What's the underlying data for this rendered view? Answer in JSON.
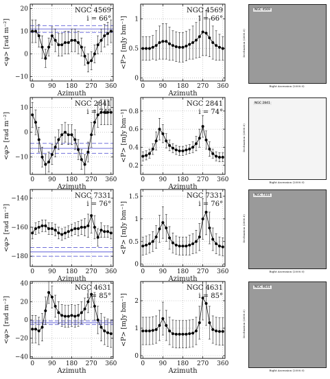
{
  "chart_data": [
    {
      "type": "scatter",
      "row": 0,
      "kind": "rm",
      "galaxy": "NGC 4569",
      "incl": "i = 66°",
      "xlabel": "Azimuth",
      "ylabel": "<φ> [rad m⁻²]",
      "xlim": [
        -10,
        370
      ],
      "ylim": [
        -12,
        22
      ],
      "xticks": [
        0,
        90,
        180,
        270,
        360
      ],
      "yticks": [
        -10,
        0,
        10,
        20
      ],
      "hlines": [
        {
          "y": 11,
          "style": "solid"
        },
        {
          "y": 12.5,
          "style": "dashed"
        },
        {
          "y": 9.5,
          "style": "dashed"
        }
      ],
      "x": [
        0,
        15,
        30,
        45,
        60,
        75,
        90,
        105,
        120,
        135,
        150,
        165,
        180,
        195,
        210,
        225,
        240,
        255,
        270,
        285,
        300,
        315,
        330,
        345,
        360
      ],
      "values": [
        10,
        10,
        8,
        3,
        -2,
        3,
        8,
        6,
        4,
        4,
        5,
        5,
        6,
        6,
        5,
        3,
        -1,
        -4,
        -3,
        0,
        4,
        6,
        8,
        9,
        10
      ],
      "errors": [
        5,
        5,
        5,
        5,
        4,
        4,
        4,
        5,
        5,
        5,
        5,
        5,
        5,
        5,
        5,
        4,
        4,
        4,
        4,
        4,
        4,
        5,
        5,
        5,
        5
      ]
    },
    {
      "type": "scatter",
      "row": 0,
      "kind": "p",
      "galaxy": "NGC 4569",
      "incl": "i = 66°",
      "xlabel": "Azimuth",
      "ylabel": "<P> [mJy bm⁻¹]",
      "xlim": [
        -10,
        370
      ],
      "ylim": [
        -0.05,
        1.25
      ],
      "xticks": [
        0,
        90,
        180,
        270,
        360
      ],
      "yticks": [
        0,
        0.5,
        1
      ],
      "x": [
        0,
        15,
        30,
        45,
        60,
        75,
        90,
        105,
        120,
        135,
        150,
        165,
        180,
        195,
        210,
        225,
        240,
        255,
        270,
        285,
        300,
        315,
        330,
        345,
        360
      ],
      "values": [
        0.5,
        0.5,
        0.5,
        0.52,
        0.55,
        0.6,
        0.62,
        0.62,
        0.58,
        0.55,
        0.53,
        0.52,
        0.52,
        0.54,
        0.57,
        0.6,
        0.64,
        0.7,
        0.78,
        0.76,
        0.68,
        0.6,
        0.55,
        0.52,
        0.5
      ],
      "errors": [
        0.2,
        0.2,
        0.2,
        0.2,
        0.25,
        0.28,
        0.3,
        0.3,
        0.28,
        0.25,
        0.25,
        0.25,
        0.25,
        0.25,
        0.25,
        0.28,
        0.3,
        0.35,
        0.4,
        0.38,
        0.32,
        0.28,
        0.25,
        0.22,
        0.2
      ]
    },
    {
      "type": "scatter",
      "row": 1,
      "kind": "rm",
      "galaxy": "NGC 2841",
      "incl": "i = 74°",
      "xlabel": "Azimuth",
      "ylabel": "<φ> [rad m⁻²]",
      "xlim": [
        -10,
        370
      ],
      "ylim": [
        -17,
        14
      ],
      "xticks": [
        0,
        90,
        180,
        270,
        360
      ],
      "yticks": [
        -10,
        0,
        10
      ],
      "hlines": [
        {
          "y": -6.5,
          "style": "solid"
        },
        {
          "y": -4.5,
          "style": "dashed"
        },
        {
          "y": -8.5,
          "style": "dashed"
        }
      ],
      "x": [
        0,
        15,
        30,
        45,
        60,
        75,
        90,
        105,
        120,
        135,
        150,
        165,
        180,
        195,
        210,
        225,
        240,
        255,
        270,
        285,
        300,
        315,
        330,
        345,
        360
      ],
      "values": [
        7,
        4,
        -3,
        -10,
        -13,
        -12,
        -9,
        -6,
        -3,
        -1,
        0,
        -1,
        -1,
        -3,
        -7,
        -11,
        -13,
        -8,
        -1,
        4,
        7,
        8,
        8,
        8,
        8
      ],
      "errors": [
        5,
        5,
        5,
        4,
        4,
        4,
        4,
        4,
        4,
        4,
        4,
        4,
        4,
        4,
        4,
        4,
        4,
        4,
        5,
        5,
        5,
        5,
        5,
        5,
        5
      ]
    },
    {
      "type": "scatter",
      "row": 1,
      "kind": "p",
      "galaxy": "NGC 2841",
      "incl": "i = 74°",
      "xlabel": "Azimuth",
      "ylabel": "<P> [mJy bm⁻¹]",
      "xlim": [
        -10,
        370
      ],
      "ylim": [
        0.1,
        0.95
      ],
      "xticks": [
        0,
        90,
        180,
        270,
        360
      ],
      "yticks": [
        0.2,
        0.4,
        0.6,
        0.8
      ],
      "x": [
        0,
        15,
        30,
        45,
        60,
        75,
        90,
        105,
        120,
        135,
        150,
        165,
        180,
        195,
        210,
        225,
        240,
        255,
        270,
        285,
        300,
        315,
        330,
        345,
        360
      ],
      "values": [
        0.3,
        0.31,
        0.33,
        0.38,
        0.47,
        0.6,
        0.55,
        0.47,
        0.42,
        0.39,
        0.37,
        0.36,
        0.36,
        0.37,
        0.38,
        0.4,
        0.44,
        0.5,
        0.63,
        0.48,
        0.38,
        0.33,
        0.3,
        0.29,
        0.29
      ],
      "errors": [
        0.05,
        0.05,
        0.05,
        0.06,
        0.1,
        0.12,
        0.1,
        0.08,
        0.06,
        0.05,
        0.05,
        0.05,
        0.05,
        0.05,
        0.05,
        0.06,
        0.08,
        0.1,
        0.12,
        0.1,
        0.08,
        0.05,
        0.05,
        0.05,
        0.05
      ]
    },
    {
      "type": "scatter",
      "row": 2,
      "kind": "rm",
      "galaxy": "NGC 7331",
      "incl": "i = 76°",
      "xlabel": "Azimuth",
      "ylabel": "<φ> [rad m⁻²]",
      "xlim": [
        -10,
        370
      ],
      "ylim": [
        -187,
        -134
      ],
      "xticks": [
        0,
        90,
        180,
        270,
        360
      ],
      "yticks": [
        -180,
        -160,
        -140
      ],
      "hlines": [
        {
          "y": -177,
          "style": "solid"
        },
        {
          "y": -174,
          "style": "dashed"
        },
        {
          "y": -180,
          "style": "dashed"
        }
      ],
      "x": [
        0,
        15,
        30,
        45,
        60,
        75,
        90,
        105,
        120,
        135,
        150,
        165,
        180,
        195,
        210,
        225,
        240,
        255,
        270,
        285,
        300,
        315,
        330,
        345,
        360
      ],
      "values": [
        -164,
        -161,
        -160,
        -159,
        -159,
        -161,
        -161,
        -162,
        -164,
        -165,
        -164,
        -163,
        -162,
        -161,
        -161,
        -160,
        -160,
        -159,
        -152,
        -160,
        -167,
        -162,
        -163,
        -163,
        -164
      ],
      "errors": [
        4,
        4,
        4,
        4,
        4,
        4,
        4,
        4,
        4,
        4,
        4,
        4,
        4,
        4,
        5,
        5,
        6,
        8,
        12,
        8,
        6,
        5,
        4,
        4,
        4
      ]
    },
    {
      "type": "scatter",
      "row": 2,
      "kind": "p",
      "galaxy": "NGC 7331",
      "incl": "i = 76°",
      "xlabel": "Azimuth",
      "ylabel": "<P> [mJy bm⁻¹]",
      "xlim": [
        -10,
        370
      ],
      "ylim": [
        -0.05,
        1.65
      ],
      "xticks": [
        0,
        90,
        180,
        270,
        360
      ],
      "yticks": [
        0,
        0.5,
        1,
        1.5
      ],
      "x": [
        0,
        15,
        30,
        45,
        60,
        75,
        90,
        105,
        120,
        135,
        150,
        165,
        180,
        195,
        210,
        225,
        240,
        255,
        270,
        285,
        300,
        315,
        330,
        345,
        360
      ],
      "values": [
        0.4,
        0.42,
        0.45,
        0.5,
        0.6,
        0.78,
        0.92,
        0.8,
        0.58,
        0.47,
        0.42,
        0.4,
        0.4,
        0.4,
        0.42,
        0.45,
        0.5,
        0.6,
        1.0,
        1.15,
        0.8,
        0.55,
        0.45,
        0.4,
        0.38
      ],
      "errors": [
        0.2,
        0.2,
        0.2,
        0.22,
        0.25,
        0.3,
        0.35,
        0.3,
        0.25,
        0.22,
        0.2,
        0.2,
        0.2,
        0.2,
        0.22,
        0.22,
        0.25,
        0.3,
        0.45,
        0.5,
        0.35,
        0.25,
        0.22,
        0.2,
        0.2
      ]
    },
    {
      "type": "scatter",
      "row": 3,
      "kind": "rm",
      "galaxy": "NGC 4631",
      "incl": "i = 85°",
      "xlabel": "Azimuth",
      "ylabel": "<φ> [rad m⁻²]",
      "xlim": [
        -10,
        370
      ],
      "ylim": [
        -42,
        42
      ],
      "xticks": [
        0,
        90,
        180,
        270,
        360
      ],
      "yticks": [
        -40,
        -20,
        0,
        20,
        40
      ],
      "hlines": [
        {
          "y": -3,
          "style": "solid"
        },
        {
          "y": -1,
          "style": "dashed"
        },
        {
          "y": -5,
          "style": "dashed"
        }
      ],
      "x": [
        0,
        15,
        30,
        45,
        60,
        75,
        90,
        105,
        120,
        135,
        150,
        165,
        180,
        195,
        210,
        225,
        240,
        255,
        270,
        285,
        300,
        315,
        330,
        345,
        360
      ],
      "values": [
        -10,
        -10,
        -12,
        -8,
        10,
        30,
        25,
        15,
        8,
        5,
        4,
        4,
        5,
        4,
        5,
        8,
        12,
        20,
        28,
        15,
        0,
        -8,
        -12,
        -14,
        -15
      ],
      "errors": [
        15,
        15,
        15,
        15,
        15,
        12,
        12,
        12,
        12,
        12,
        12,
        12,
        12,
        12,
        12,
        12,
        12,
        12,
        14,
        15,
        15,
        15,
        15,
        15,
        15
      ]
    },
    {
      "type": "scatter",
      "row": 3,
      "kind": "p",
      "galaxy": "NGC 4631",
      "incl": "i = 85°",
      "xlabel": "Azimuth",
      "ylabel": "<P> [mJy bm⁻¹]",
      "xlim": [
        -10,
        370
      ],
      "ylim": [
        -0.1,
        2.7
      ],
      "xticks": [
        0,
        90,
        180,
        270,
        360
      ],
      "yticks": [
        0,
        1,
        2
      ],
      "x": [
        0,
        15,
        30,
        45,
        60,
        75,
        90,
        105,
        120,
        135,
        150,
        165,
        180,
        195,
        210,
        225,
        240,
        255,
        270,
        285,
        300,
        315,
        330,
        345,
        360
      ],
      "values": [
        0.9,
        0.9,
        0.9,
        0.92,
        0.95,
        1.1,
        1.35,
        1.1,
        0.9,
        0.8,
        0.78,
        0.78,
        0.78,
        0.78,
        0.8,
        0.82,
        0.9,
        1.2,
        2.1,
        1.9,
        1.2,
        0.95,
        0.9,
        0.88,
        0.88
      ],
      "errors": [
        0.5,
        0.5,
        0.5,
        0.5,
        0.5,
        0.55,
        0.6,
        0.55,
        0.5,
        0.5,
        0.5,
        0.5,
        0.5,
        0.5,
        0.5,
        0.5,
        0.5,
        0.6,
        0.8,
        0.8,
        0.6,
        0.5,
        0.5,
        0.5,
        0.5
      ]
    }
  ],
  "images": [
    {
      "label": "NGC 4569",
      "ylabel": "Declination (2000.0)",
      "xlabel": "Right Ascension (2000.0)"
    },
    {
      "label": "NGC 2841",
      "ylabel": "Declination (2000.0)",
      "xlabel": "Right Ascension (2000.0)"
    },
    {
      "label": "NGC 7331",
      "ylabel": "Declination (2000.0)",
      "xlabel": "Right Ascension (2000.0)"
    },
    {
      "label": "NGC 4631",
      "ylabel": "Declination (2000.0)",
      "xlabel": "Right Ascension (2000.0)"
    }
  ],
  "colors": {
    "points": "#000000",
    "rm_line": "#5b5bd6",
    "grid": "#9a9a9a",
    "vectors": "#cc2222"
  }
}
